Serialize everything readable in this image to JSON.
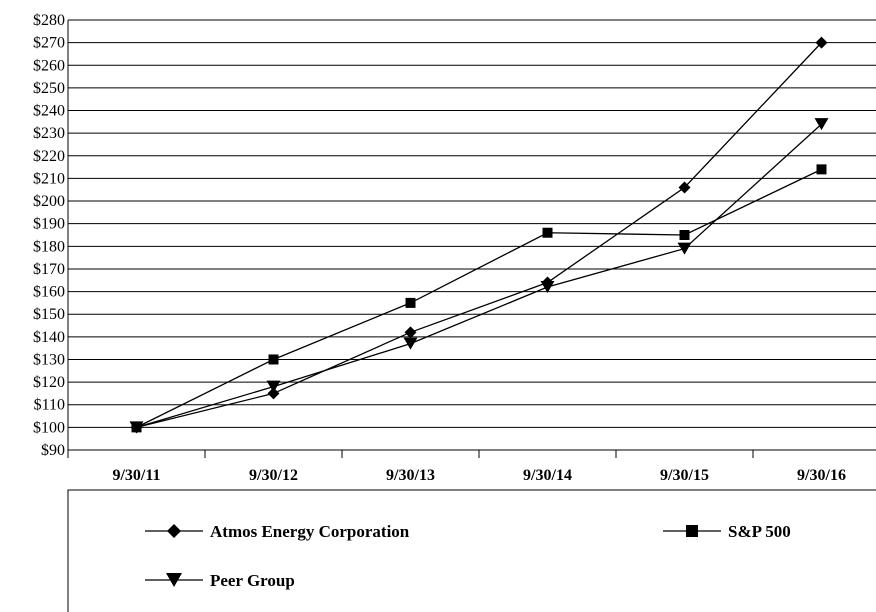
{
  "chart_data": {
    "type": "line",
    "title": "",
    "xlabel": "",
    "ylabel": "",
    "categories": [
      "9/30/11",
      "9/30/12",
      "9/30/13",
      "9/30/14",
      "9/30/15",
      "9/30/16"
    ],
    "ylim": [
      90,
      280
    ],
    "y_tick_step": 10,
    "y_tick_prefix": "$",
    "grid": "horizontal",
    "legend_position": "bottom",
    "series": [
      {
        "name": "Atmos Energy Corporation",
        "marker": "diamond",
        "color": "#000000",
        "values": [
          100,
          115,
          142,
          164,
          206,
          270
        ]
      },
      {
        "name": "S&P 500",
        "marker": "square",
        "color": "#000000",
        "values": [
          100,
          130,
          155,
          186,
          185,
          214
        ]
      },
      {
        "name": "Peer Group",
        "marker": "triangle-down",
        "color": "#000000",
        "values": [
          100,
          118,
          137,
          162,
          179,
          234
        ]
      }
    ]
  }
}
